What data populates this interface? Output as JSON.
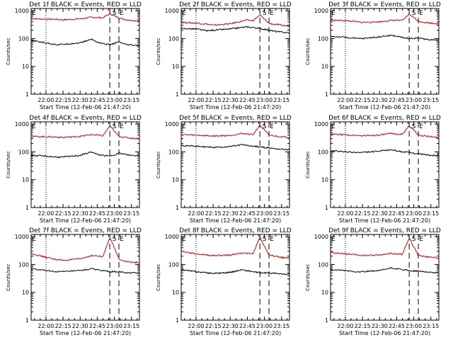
{
  "figure": {
    "ylabel": "Counts/sec",
    "xlabel": "Start Time (12-Feb-06 21:47:20)",
    "x_tick_labels": [
      "22:00",
      "22:15",
      "22:30",
      "22:45",
      "23:00",
      "23:15"
    ],
    "y_tick_labels": [
      "1",
      "10",
      "100",
      "1000"
    ],
    "markers": [
      "E",
      "S",
      "E"
    ],
    "colors": {
      "events": "#000000",
      "lld": "#e00000",
      "axes": "#000000",
      "background": "#ffffff"
    }
  },
  "chart_data": [
    {
      "type": "line",
      "title": "Det 1f BLACK = Events, RED = LLD",
      "xlabel": "Start Time (12-Feb-06 21:47:20)",
      "ylabel": "Counts/sec",
      "xlim": [
        "21:47",
        "23:22"
      ],
      "ylim": [
        1,
        1200
      ],
      "yscale": "log",
      "x_ticks": [
        "22:00",
        "22:15",
        "22:30",
        "22:45",
        "23:00",
        "23:15"
      ],
      "reference_lines": {
        "dotted": "22:00",
        "dashed": [
          "22:56",
          "23:04"
        ]
      },
      "markers": [
        "E",
        "S",
        "E"
      ],
      "series": [
        {
          "name": "LLD",
          "color": "#e00000",
          "x": [
            "21:47",
            "22:00",
            "22:10",
            "22:15",
            "22:30",
            "22:40",
            "22:45",
            "22:50",
            "22:56",
            "23:04",
            "23:10",
            "23:15",
            "23:22"
          ],
          "values": [
            520,
            500,
            490,
            470,
            510,
            580,
            570,
            560,
            780,
            550,
            480,
            450,
            430
          ]
        },
        {
          "name": "Events",
          "color": "#000000",
          "x": [
            "21:47",
            "22:00",
            "22:10",
            "22:15",
            "22:30",
            "22:40",
            "22:45",
            "22:50",
            "22:56",
            "23:04",
            "23:10",
            "23:15",
            "23:22"
          ],
          "values": [
            85,
            70,
            60,
            62,
            70,
            95,
            75,
            65,
            60,
            75,
            60,
            58,
            55
          ]
        }
      ]
    },
    {
      "type": "line",
      "title": "Det 2f BLACK = Events, RED = LLD",
      "xlabel": "Start Time (12-Feb-06 21:47:20)",
      "ylabel": "Counts/sec",
      "xlim": [
        "21:47",
        "23:22"
      ],
      "ylim": [
        1,
        1200
      ],
      "yscale": "log",
      "x_ticks": [
        "22:00",
        "22:15",
        "22:30",
        "22:45",
        "23:00",
        "23:15"
      ],
      "reference_lines": {
        "dotted": "22:00",
        "dashed": [
          "22:56",
          "23:04"
        ]
      },
      "markers": [
        "E",
        "S",
        "E"
      ],
      "series": [
        {
          "name": "LLD",
          "color": "#e00000",
          "x": [
            "21:47",
            "22:00",
            "22:10",
            "22:15",
            "22:30",
            "22:40",
            "22:45",
            "22:50",
            "22:56",
            "23:04",
            "23:10",
            "23:15",
            "23:22"
          ],
          "values": [
            380,
            360,
            330,
            300,
            340,
            420,
            460,
            440,
            700,
            350,
            320,
            300,
            280
          ]
        },
        {
          "name": "Events",
          "color": "#000000",
          "x": [
            "21:47",
            "22:00",
            "22:10",
            "22:15",
            "22:30",
            "22:40",
            "22:45",
            "22:50",
            "22:56",
            "23:04",
            "23:10",
            "23:15",
            "23:22"
          ],
          "values": [
            230,
            220,
            190,
            200,
            220,
            250,
            260,
            250,
            230,
            200,
            180,
            170,
            160
          ]
        }
      ]
    },
    {
      "type": "line",
      "title": "Det 3f BLACK = Events, RED = LLD",
      "xlabel": "Start Time (12-Feb-06 21:47:20)",
      "ylabel": "Counts/sec",
      "xlim": [
        "21:47",
        "23:22"
      ],
      "ylim": [
        1,
        1200
      ],
      "yscale": "log",
      "x_ticks": [
        "22:00",
        "22:15",
        "22:30",
        "22:45",
        "23:00",
        "23:15"
      ],
      "reference_lines": {
        "dotted": "22:00",
        "dashed": [
          "22:56",
          "23:04"
        ]
      },
      "markers": [
        "E",
        "S",
        "E"
      ],
      "series": [
        {
          "name": "LLD",
          "color": "#e00000",
          "x": [
            "21:47",
            "22:00",
            "22:10",
            "22:15",
            "22:30",
            "22:40",
            "22:45",
            "22:50",
            "22:56",
            "23:04",
            "23:10",
            "23:15",
            "23:22"
          ],
          "values": [
            460,
            440,
            400,
            380,
            400,
            450,
            460,
            440,
            760,
            420,
            380,
            360,
            340
          ]
        },
        {
          "name": "Events",
          "color": "#000000",
          "x": [
            "21:47",
            "22:00",
            "22:10",
            "22:15",
            "22:30",
            "22:40",
            "22:45",
            "22:50",
            "22:56",
            "23:04",
            "23:10",
            "23:15",
            "23:22"
          ],
          "values": [
            120,
            110,
            100,
            100,
            115,
            130,
            120,
            110,
            100,
            105,
            95,
            90,
            88
          ]
        }
      ]
    },
    {
      "type": "line",
      "title": "Det 4f BLACK = Events, RED = LLD",
      "xlabel": "Start Time (12-Feb-06 21:47:20)",
      "ylabel": "Counts/sec",
      "xlim": [
        "21:47",
        "23:22"
      ],
      "ylim": [
        1,
        1200
      ],
      "yscale": "log",
      "x_ticks": [
        "22:00",
        "22:15",
        "22:30",
        "22:45",
        "23:00",
        "23:15"
      ],
      "reference_lines": {
        "dotted": "22:00",
        "dashed": [
          "22:56",
          "23:04"
        ]
      },
      "markers": [
        "E",
        "S",
        "E"
      ],
      "series": [
        {
          "name": "LLD",
          "color": "#e00000",
          "x": [
            "21:47",
            "22:00",
            "22:10",
            "22:15",
            "22:30",
            "22:40",
            "22:45",
            "22:50",
            "22:56",
            "23:04",
            "23:10",
            "23:15",
            "23:22"
          ],
          "values": [
            360,
            350,
            340,
            330,
            360,
            420,
            400,
            380,
            850,
            360,
            330,
            310,
            300
          ]
        },
        {
          "name": "Events",
          "color": "#000000",
          "x": [
            "21:47",
            "22:00",
            "22:10",
            "22:15",
            "22:30",
            "22:40",
            "22:45",
            "22:50",
            "22:56",
            "23:04",
            "23:10",
            "23:15",
            "23:22"
          ],
          "values": [
            75,
            70,
            65,
            65,
            75,
            100,
            80,
            75,
            70,
            90,
            80,
            75,
            72
          ]
        }
      ]
    },
    {
      "type": "line",
      "title": "Det 5f BLACK = Events, RED = LLD",
      "xlabel": "Start Time (12-Feb-06 21:47:20)",
      "ylabel": "Counts/sec",
      "xlim": [
        "21:47",
        "23:22"
      ],
      "ylim": [
        1,
        1200
      ],
      "yscale": "log",
      "x_ticks": [
        "22:00",
        "22:15",
        "22:30",
        "22:45",
        "23:00",
        "23:15"
      ],
      "reference_lines": {
        "dotted": "22:00",
        "dashed": [
          "22:56",
          "23:04"
        ]
      },
      "markers": [
        "E",
        "S",
        "E"
      ],
      "series": [
        {
          "name": "LLD",
          "color": "#e00000",
          "x": [
            "21:47",
            "22:00",
            "22:10",
            "22:15",
            "22:30",
            "22:40",
            "22:45",
            "22:50",
            "22:56",
            "23:04",
            "23:10",
            "23:15",
            "23:22"
          ],
          "values": [
            420,
            400,
            380,
            370,
            390,
            460,
            440,
            420,
            900,
            400,
            370,
            350,
            340
          ]
        },
        {
          "name": "Events",
          "color": "#000000",
          "x": [
            "21:47",
            "22:00",
            "22:10",
            "22:15",
            "22:30",
            "22:40",
            "22:45",
            "22:50",
            "22:56",
            "23:04",
            "23:10",
            "23:15",
            "23:22"
          ],
          "values": [
            170,
            160,
            150,
            145,
            155,
            180,
            170,
            160,
            150,
            140,
            130,
            125,
            120
          ]
        }
      ]
    },
    {
      "type": "line",
      "title": "Det 6f BLACK = Events, RED = LLD",
      "xlabel": "Start Time (12-Feb-06 21:47:20)",
      "ylabel": "Counts/sec",
      "xlim": [
        "21:47",
        "23:22"
      ],
      "ylim": [
        1,
        1200
      ],
      "yscale": "log",
      "x_ticks": [
        "22:00",
        "22:15",
        "22:30",
        "22:45",
        "23:00",
        "23:15"
      ],
      "reference_lines": {
        "dotted": "22:00",
        "dashed": [
          "22:56",
          "23:04"
        ]
      },
      "markers": [
        "E",
        "S",
        "E"
      ],
      "series": [
        {
          "name": "LLD",
          "color": "#e00000",
          "x": [
            "21:47",
            "22:00",
            "22:10",
            "22:15",
            "22:30",
            "22:40",
            "22:45",
            "22:50",
            "22:56",
            "23:04",
            "23:10",
            "23:15",
            "23:22"
          ],
          "values": [
            430,
            410,
            390,
            380,
            400,
            460,
            440,
            420,
            880,
            400,
            370,
            350,
            330
          ]
        },
        {
          "name": "Events",
          "color": "#000000",
          "x": [
            "21:47",
            "22:00",
            "22:10",
            "22:15",
            "22:30",
            "22:40",
            "22:45",
            "22:50",
            "22:56",
            "23:04",
            "23:10",
            "23:15",
            "23:22"
          ],
          "values": [
            110,
            100,
            95,
            95,
            105,
            120,
            110,
            100,
            95,
            85,
            80,
            75,
            72
          ]
        }
      ]
    },
    {
      "type": "line",
      "title": "Det 7f BLACK = Events, RED = LLD",
      "xlabel": "Start Time (12-Feb-06 21:47:20)",
      "ylabel": "Counts/sec",
      "xlim": [
        "21:47",
        "23:22"
      ],
      "ylim": [
        1,
        1200
      ],
      "yscale": "log",
      "x_ticks": [
        "22:00",
        "22:15",
        "22:30",
        "22:45",
        "23:00",
        "23:15"
      ],
      "reference_lines": {
        "dotted": "22:00",
        "dashed": [
          "22:56",
          "23:04"
        ]
      },
      "markers": [
        "E",
        "S",
        "E"
      ],
      "series": [
        {
          "name": "LLD",
          "color": "#e00000",
          "x": [
            "21:47",
            "22:00",
            "22:10",
            "22:15",
            "22:30",
            "22:40",
            "22:45",
            "22:50",
            "22:56",
            "23:04",
            "23:10",
            "23:15",
            "23:22"
          ],
          "values": [
            250,
            180,
            150,
            140,
            160,
            210,
            200,
            190,
            950,
            160,
            130,
            120,
            120
          ]
        },
        {
          "name": "Events",
          "color": "#000000",
          "x": [
            "21:47",
            "22:00",
            "22:10",
            "22:15",
            "22:30",
            "22:40",
            "22:45",
            "22:50",
            "22:56",
            "23:04",
            "23:10",
            "23:15",
            "23:22"
          ],
          "values": [
            70,
            60,
            55,
            55,
            60,
            70,
            65,
            60,
            55,
            55,
            50,
            50,
            50
          ]
        }
      ]
    },
    {
      "type": "line",
      "title": "Det 8f BLACK = Events, RED = LLD",
      "xlabel": "Start Time (12-Feb-06 21:47:20)",
      "ylabel": "Counts/sec",
      "xlim": [
        "21:47",
        "23:22"
      ],
      "ylim": [
        1,
        1200
      ],
      "yscale": "log",
      "x_ticks": [
        "22:00",
        "22:15",
        "22:30",
        "22:45",
        "23:00",
        "23:15"
      ],
      "reference_lines": {
        "dotted": "22:00",
        "dashed": [
          "22:56",
          "23:04"
        ]
      },
      "markers": [
        "E",
        "S",
        "E"
      ],
      "series": [
        {
          "name": "LLD",
          "color": "#e00000",
          "x": [
            "21:47",
            "22:00",
            "22:10",
            "22:15",
            "22:30",
            "22:40",
            "22:45",
            "22:50",
            "22:56",
            "23:04",
            "23:10",
            "23:15",
            "23:22"
          ],
          "values": [
            300,
            240,
            220,
            210,
            220,
            260,
            250,
            240,
            950,
            220,
            200,
            180,
            170
          ]
        },
        {
          "name": "Events",
          "color": "#000000",
          "x": [
            "21:47",
            "22:00",
            "22:10",
            "22:15",
            "22:30",
            "22:40",
            "22:45",
            "22:50",
            "22:56",
            "23:04",
            "23:10",
            "23:15",
            "23:22"
          ],
          "values": [
            65,
            55,
            50,
            48,
            52,
            65,
            60,
            55,
            50,
            50,
            48,
            45,
            45
          ]
        }
      ]
    },
    {
      "type": "line",
      "title": "Det 9f BLACK = Events, RED = LLD",
      "xlabel": "Start Time (12-Feb-06 21:47:20)",
      "ylabel": "Counts/sec",
      "xlim": [
        "21:47",
        "23:22"
      ],
      "ylim": [
        1,
        1200
      ],
      "yscale": "log",
      "x_ticks": [
        "22:00",
        "22:15",
        "22:30",
        "22:45",
        "23:00",
        "23:15"
      ],
      "reference_lines": {
        "dotted": "22:00",
        "dashed": [
          "22:56",
          "23:04"
        ]
      },
      "markers": [
        "E",
        "S",
        "E"
      ],
      "series": [
        {
          "name": "LLD",
          "color": "#e00000",
          "x": [
            "21:47",
            "22:00",
            "22:10",
            "22:15",
            "22:30",
            "22:40",
            "22:45",
            "22:50",
            "22:56",
            "23:04",
            "23:10",
            "23:15",
            "23:22"
          ],
          "values": [
            270,
            240,
            220,
            210,
            220,
            250,
            240,
            230,
            900,
            210,
            190,
            180,
            170
          ]
        },
        {
          "name": "Events",
          "color": "#000000",
          "x": [
            "21:47",
            "22:00",
            "22:10",
            "22:15",
            "22:30",
            "22:40",
            "22:45",
            "22:50",
            "22:56",
            "23:04",
            "23:10",
            "23:15",
            "23:22"
          ],
          "values": [
            65,
            60,
            55,
            55,
            60,
            75,
            70,
            65,
            60,
            58,
            55,
            52,
            50
          ]
        }
      ]
    }
  ]
}
